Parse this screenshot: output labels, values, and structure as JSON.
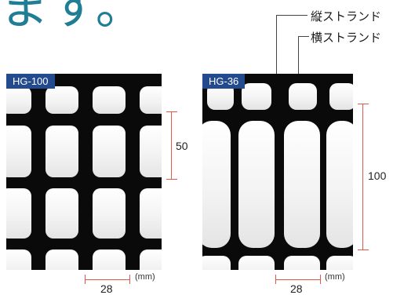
{
  "heading": "ます。",
  "legend": {
    "vertical_strand": "縦ストランド",
    "horizontal_strand": "横ストランド"
  },
  "samples": [
    {
      "name": "HG-100",
      "height_dim": "50",
      "width_dim": "28",
      "unit": "(mm)"
    },
    {
      "name": "HG-36",
      "height_dim": "100",
      "width_dim": "28",
      "unit": "(mm)"
    }
  ],
  "colors": {
    "heading": "#1f7e95",
    "badge": "#234a8e",
    "dimension_line": "#e05a4a"
  }
}
